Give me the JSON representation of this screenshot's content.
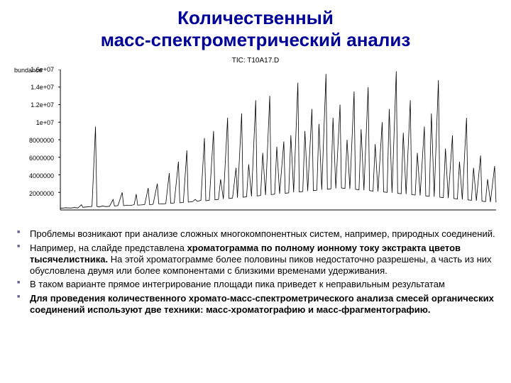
{
  "title_line1": "Количественный",
  "title_line2": "масс-спектрометрический анализ",
  "chart": {
    "title": "TIC: T10A17.D",
    "abundance_label": "bundance",
    "yticks": [
      "1.6e+07",
      "1.4e+07",
      "1.2e+07",
      "1e+07",
      "8000000",
      "6000000",
      "4000000",
      "2000000"
    ],
    "ylim": [
      0,
      16000000
    ],
    "line_color": "#000000",
    "background_color": "#ffffff",
    "peaks": [
      [
        0,
        200000
      ],
      [
        8,
        250000
      ],
      [
        15,
        220000
      ],
      [
        20,
        280000
      ],
      [
        25,
        230000
      ],
      [
        30,
        600000
      ],
      [
        32,
        300000
      ],
      [
        38,
        350000
      ],
      [
        45,
        400000
      ],
      [
        50,
        9500000
      ],
      [
        52,
        400000
      ],
      [
        55,
        350000
      ],
      [
        60,
        450000
      ],
      [
        65,
        380000
      ],
      [
        70,
        420000
      ],
      [
        75,
        1200000
      ],
      [
        77,
        450000
      ],
      [
        82,
        500000
      ],
      [
        88,
        2000000
      ],
      [
        90,
        480000
      ],
      [
        95,
        550000
      ],
      [
        100,
        520000
      ],
      [
        105,
        600000
      ],
      [
        108,
        1800000
      ],
      [
        110,
        550000
      ],
      [
        115,
        580000
      ],
      [
        120,
        620000
      ],
      [
        125,
        2500000
      ],
      [
        127,
        600000
      ],
      [
        132,
        650000
      ],
      [
        138,
        3000000
      ],
      [
        140,
        700000
      ],
      [
        145,
        680000
      ],
      [
        150,
        720000
      ],
      [
        155,
        4200000
      ],
      [
        157,
        750000
      ],
      [
        162,
        800000
      ],
      [
        168,
        5500000
      ],
      [
        170,
        820000
      ],
      [
        175,
        850000
      ],
      [
        180,
        6800000
      ],
      [
        182,
        900000
      ],
      [
        188,
        950000
      ],
      [
        192,
        1200000
      ],
      [
        195,
        980000
      ],
      [
        200,
        1100000
      ],
      [
        205,
        8200000
      ],
      [
        207,
        1050000
      ],
      [
        212,
        1100000
      ],
      [
        218,
        9000000
      ],
      [
        220,
        1150000
      ],
      [
        225,
        1200000
      ],
      [
        228,
        3500000
      ],
      [
        232,
        1250000
      ],
      [
        238,
        10500000
      ],
      [
        240,
        1300000
      ],
      [
        245,
        1350000
      ],
      [
        250,
        4800000
      ],
      [
        252,
        1400000
      ],
      [
        258,
        11000000
      ],
      [
        260,
        1450000
      ],
      [
        265,
        1500000
      ],
      [
        268,
        5200000
      ],
      [
        272,
        1550000
      ],
      [
        278,
        12500000
      ],
      [
        280,
        1600000
      ],
      [
        285,
        1650000
      ],
      [
        288,
        6500000
      ],
      [
        292,
        1700000
      ],
      [
        298,
        13000000
      ],
      [
        300,
        1750000
      ],
      [
        305,
        1800000
      ],
      [
        308,
        7200000
      ],
      [
        312,
        1850000
      ],
      [
        318,
        7800000
      ],
      [
        320,
        1900000
      ],
      [
        325,
        1950000
      ],
      [
        328,
        8500000
      ],
      [
        332,
        2000000
      ],
      [
        338,
        14500000
      ],
      [
        340,
        2050000
      ],
      [
        345,
        2100000
      ],
      [
        348,
        9000000
      ],
      [
        352,
        2150000
      ],
      [
        358,
        11500000
      ],
      [
        360,
        2200000
      ],
      [
        365,
        2250000
      ],
      [
        368,
        9800000
      ],
      [
        372,
        2300000
      ],
      [
        378,
        15500000
      ],
      [
        380,
        2350000
      ],
      [
        385,
        2400000
      ],
      [
        388,
        10500000
      ],
      [
        392,
        2450000
      ],
      [
        398,
        12000000
      ],
      [
        400,
        2500000
      ],
      [
        405,
        2450000
      ],
      [
        408,
        8000000
      ],
      [
        412,
        2400000
      ],
      [
        418,
        13500000
      ],
      [
        420,
        2350000
      ],
      [
        425,
        2300000
      ],
      [
        428,
        9200000
      ],
      [
        432,
        2250000
      ],
      [
        438,
        14000000
      ],
      [
        440,
        2200000
      ],
      [
        445,
        2150000
      ],
      [
        448,
        7500000
      ],
      [
        452,
        2100000
      ],
      [
        458,
        10000000
      ],
      [
        460,
        2050000
      ],
      [
        465,
        2000000
      ],
      [
        468,
        11500000
      ],
      [
        472,
        1950000
      ],
      [
        478,
        15800000
      ],
      [
        480,
        1900000
      ],
      [
        485,
        1850000
      ],
      [
        488,
        8800000
      ],
      [
        492,
        1800000
      ],
      [
        498,
        12500000
      ],
      [
        500,
        1750000
      ],
      [
        505,
        1700000
      ],
      [
        508,
        6500000
      ],
      [
        512,
        1650000
      ],
      [
        518,
        9500000
      ],
      [
        520,
        1600000
      ],
      [
        525,
        1550000
      ],
      [
        528,
        11000000
      ],
      [
        532,
        1500000
      ],
      [
        538,
        14800000
      ],
      [
        540,
        1450000
      ],
      [
        545,
        1400000
      ],
      [
        548,
        7000000
      ],
      [
        552,
        1350000
      ],
      [
        558,
        8500000
      ],
      [
        560,
        1300000
      ],
      [
        565,
        1250000
      ],
      [
        568,
        5500000
      ],
      [
        572,
        1200000
      ],
      [
        578,
        10500000
      ],
      [
        580,
        1150000
      ],
      [
        585,
        1100000
      ],
      [
        588,
        4800000
      ],
      [
        592,
        1050000
      ],
      [
        598,
        6200000
      ],
      [
        600,
        1000000
      ],
      [
        605,
        950000
      ],
      [
        608,
        3500000
      ],
      [
        612,
        900000
      ],
      [
        618,
        5000000
      ],
      [
        620,
        850000
      ]
    ]
  },
  "bullets": [
    {
      "plain": "Проблемы возникают при анализе сложных многокомпонентных систем, например, природных соединений."
    },
    {
      "pre": "Например, на слайде представлена ",
      "bold": "хроматограмма по полному ионному току экстракта цветов тысячелистника.",
      "post": " На этой хроматограмме более половины пиков недостаточно разрешены, а часть из них обусловлена двумя или более компонентами с близкими временами удерживания."
    },
    {
      "plain": " В таком варианте прямое интегрирование площади пика приведет к неправильным результатам"
    },
    {
      "boldAll": "Для проведения количественного хромато-масс-спектрометрического анализа смесей органических соединений используют две техники: масс-хроматографию и масс-фрагментографию."
    }
  ]
}
